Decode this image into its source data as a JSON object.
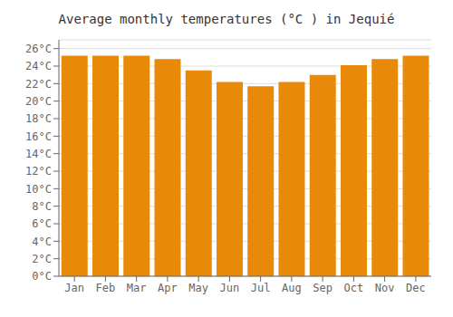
{
  "chart_data": {
    "type": "bar",
    "title": "Average monthly temperatures (°C ) in Jequié",
    "categories": [
      "Jan",
      "Feb",
      "Mar",
      "Apr",
      "May",
      "Jun",
      "Jul",
      "Aug",
      "Sep",
      "Oct",
      "Nov",
      "Dec"
    ],
    "values": [
      25.2,
      25.2,
      25.2,
      24.8,
      23.5,
      22.2,
      21.7,
      22.2,
      23.0,
      24.1,
      24.8,
      25.2
    ],
    "color": "#E8890A",
    "ylim": [
      0,
      27
    ],
    "yticks": [
      {
        "value": 0,
        "label": "0°C"
      },
      {
        "value": 2,
        "label": "2°C"
      },
      {
        "value": 4,
        "label": "4°C"
      },
      {
        "value": 6,
        "label": "6°C"
      },
      {
        "value": 8,
        "label": "8°C"
      },
      {
        "value": 10,
        "label": "10°C"
      },
      {
        "value": 12,
        "label": "12°C"
      },
      {
        "value": 14,
        "label": "14°C"
      },
      {
        "value": 16,
        "label": "16°C"
      },
      {
        "value": 18,
        "label": "18°C"
      },
      {
        "value": 20,
        "label": "20°C"
      },
      {
        "value": 22,
        "label": "22°C"
      },
      {
        "value": 24,
        "label": "24°C"
      },
      {
        "value": 26,
        "label": "26°C"
      }
    ],
    "grid": true
  }
}
